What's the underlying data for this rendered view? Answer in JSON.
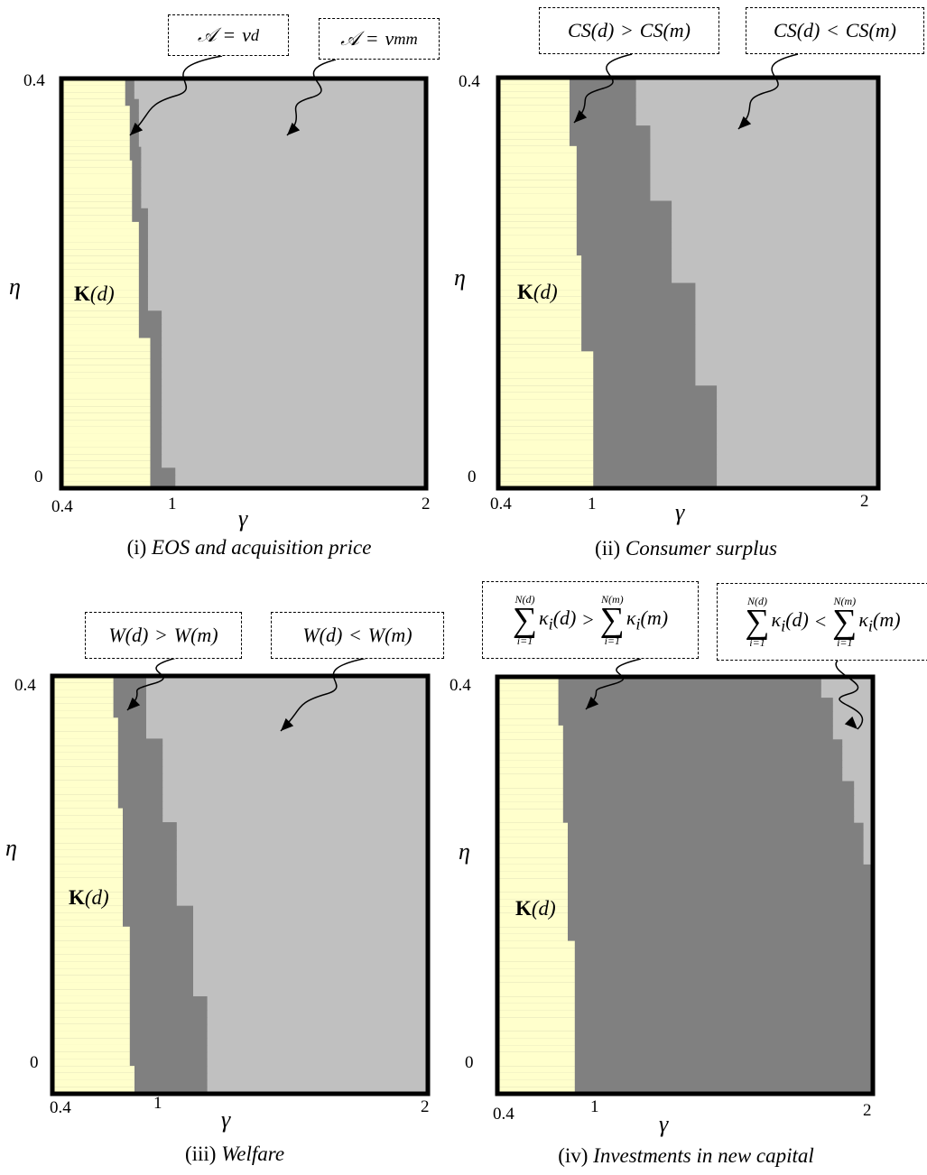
{
  "colors": {
    "k_region": "#ffffcc",
    "dark_region": "#808080",
    "light_region": "#c0c0c0",
    "frame": "#000000"
  },
  "chart_data": [
    {
      "type": "heatmap",
      "title_num": "(i)",
      "title_text": "EOS and acquisition price",
      "xlabel": "γ",
      "ylabel": "η",
      "xlim": [
        0.4,
        2
      ],
      "ylim": [
        0,
        0.4
      ],
      "x_ticks": [
        "0.4",
        "1",
        "2"
      ],
      "y_ticks": [
        "0.4",
        "0"
      ],
      "region_label_bold": "K",
      "region_label_italic": "(d)",
      "callouts": [
        {
          "lhs": "𝒜",
          "op": "=",
          "rhs": "v",
          "sub": "d"
        },
        {
          "lhs": "𝒜",
          "op": "=",
          "rhs": "v",
          "sub": "mm"
        }
      ],
      "boundary_k_dark": [
        {
          "eta": 0.4,
          "gamma": 0.68
        },
        {
          "eta": 0.37,
          "gamma": 0.7
        },
        {
          "eta": 0.32,
          "gamma": 0.71
        },
        {
          "eta": 0.26,
          "gamma": 0.74
        },
        {
          "eta": 0.15,
          "gamma": 0.79
        },
        {
          "eta": 0,
          "gamma": 0.82
        }
      ],
      "boundary_dark_light": [
        {
          "eta": 0.4,
          "gamma": 0.72
        },
        {
          "eta": 0.38,
          "gamma": 0.74
        },
        {
          "eta": 0.33,
          "gamma": 0.75
        },
        {
          "eta": 0.27,
          "gamma": 0.78
        },
        {
          "eta": 0.17,
          "gamma": 0.84
        },
        {
          "eta": 0.02,
          "gamma": 0.9
        },
        {
          "eta": 0,
          "gamma": 0.92
        }
      ]
    },
    {
      "type": "heatmap",
      "title_num": "(ii)",
      "title_text": "Consumer surplus",
      "xlabel": "γ",
      "ylabel": "η",
      "xlim": [
        0.4,
        2
      ],
      "ylim": [
        0,
        0.4
      ],
      "x_ticks": [
        "0.4",
        "1",
        "2"
      ],
      "y_ticks": [
        "0.4",
        "0"
      ],
      "region_label_bold": "K",
      "region_label_italic": "(d)",
      "callouts": [
        {
          "lhs": "CS(d)",
          "op": ">",
          "rhs": "CS(m)"
        },
        {
          "lhs": "CS(d)",
          "op": "<",
          "rhs": "CS(m)"
        }
      ],
      "boundary_k_dark": [
        {
          "eta": 0.4,
          "gamma": 0.7
        },
        {
          "eta": 0.33,
          "gamma": 0.73
        },
        {
          "eta": 0.23,
          "gamma": 0.75
        },
        {
          "eta": 0.13,
          "gamma": 0.8
        },
        {
          "eta": 0,
          "gamma": 0.82
        }
      ],
      "boundary_dark_light": [
        {
          "eta": 0.4,
          "gamma": 0.98
        },
        {
          "eta": 0.35,
          "gamma": 1.04
        },
        {
          "eta": 0.28,
          "gamma": 1.13
        },
        {
          "eta": 0.2,
          "gamma": 1.23
        },
        {
          "eta": 0.1,
          "gamma": 1.32
        },
        {
          "eta": 0,
          "gamma": 1.4
        }
      ]
    },
    {
      "type": "heatmap",
      "title_num": "(iii)",
      "title_text": "Welfare",
      "xlabel": "γ",
      "ylabel": "η",
      "xlim": [
        0.4,
        2
      ],
      "ylim": [
        0,
        0.4
      ],
      "x_ticks": [
        "0.4",
        "1",
        "2"
      ],
      "y_ticks": [
        "0.4",
        "0"
      ],
      "region_label_bold": "K",
      "region_label_italic": "(d)",
      "callouts": [
        {
          "lhs": "W(d)",
          "op": ">",
          "rhs": "W(m)"
        },
        {
          "lhs": "W(d)",
          "op": "<",
          "rhs": "W(m)"
        }
      ],
      "boundary_k_dark": [
        {
          "eta": 0.4,
          "gamma": 0.66
        },
        {
          "eta": 0.36,
          "gamma": 0.68
        },
        {
          "eta": 0.27,
          "gamma": 0.7
        },
        {
          "eta": 0.16,
          "gamma": 0.73
        },
        {
          "eta": 0.03,
          "gamma": 0.75
        },
        {
          "eta": 0,
          "gamma": 0.76
        }
      ],
      "boundary_dark_light": [
        {
          "eta": 0.4,
          "gamma": 0.8
        },
        {
          "eta": 0.34,
          "gamma": 0.87
        },
        {
          "eta": 0.26,
          "gamma": 0.93
        },
        {
          "eta": 0.18,
          "gamma": 1.0
        },
        {
          "eta": 0.09,
          "gamma": 1.06
        },
        {
          "eta": 0,
          "gamma": 1.14
        }
      ]
    },
    {
      "type": "heatmap",
      "title_num": "(iv)",
      "title_text": "Investments in new capital",
      "xlabel": "γ",
      "ylabel": "η",
      "xlim": [
        0.4,
        2
      ],
      "ylim": [
        0,
        0.4
      ],
      "x_ticks": [
        "0.4",
        "1",
        "2"
      ],
      "y_ticks": [
        "0.4",
        "0"
      ],
      "region_label_bold": "K",
      "region_label_italic": "(d)",
      "callouts": [
        {
          "upper": "N(d)",
          "lower": "i=1",
          "term": "κ",
          "sub": "i",
          "arg": "(d)",
          "op": ">",
          "upper2": "N(m)",
          "lower2": "i=1",
          "term2": "κ",
          "sub2": "i",
          "arg2": "(m)"
        },
        {
          "upper": "N(d)",
          "lower": "i=1",
          "term": "κ",
          "sub": "i",
          "arg": "(d)",
          "op": "<",
          "upper2": "N(m)",
          "lower2": "i=1",
          "term2": "κ",
          "sub2": "i",
          "arg2": "(m)"
        }
      ],
      "boundary_k_dark": [
        {
          "eta": 0.4,
          "gamma": 0.66
        },
        {
          "eta": 0.35,
          "gamma": 0.68
        },
        {
          "eta": 0.26,
          "gamma": 0.7
        },
        {
          "eta": 0.15,
          "gamma": 0.73
        },
        {
          "eta": 0,
          "gamma": 0.76
        }
      ],
      "boundary_dark_light": [
        {
          "eta": 0.4,
          "gamma": 1.78
        },
        {
          "eta": 0.38,
          "gamma": 1.83
        },
        {
          "eta": 0.34,
          "gamma": 1.87
        },
        {
          "eta": 0.3,
          "gamma": 1.92
        },
        {
          "eta": 0.26,
          "gamma": 1.96
        },
        {
          "eta": 0.22,
          "gamma": 2.0
        }
      ]
    }
  ]
}
